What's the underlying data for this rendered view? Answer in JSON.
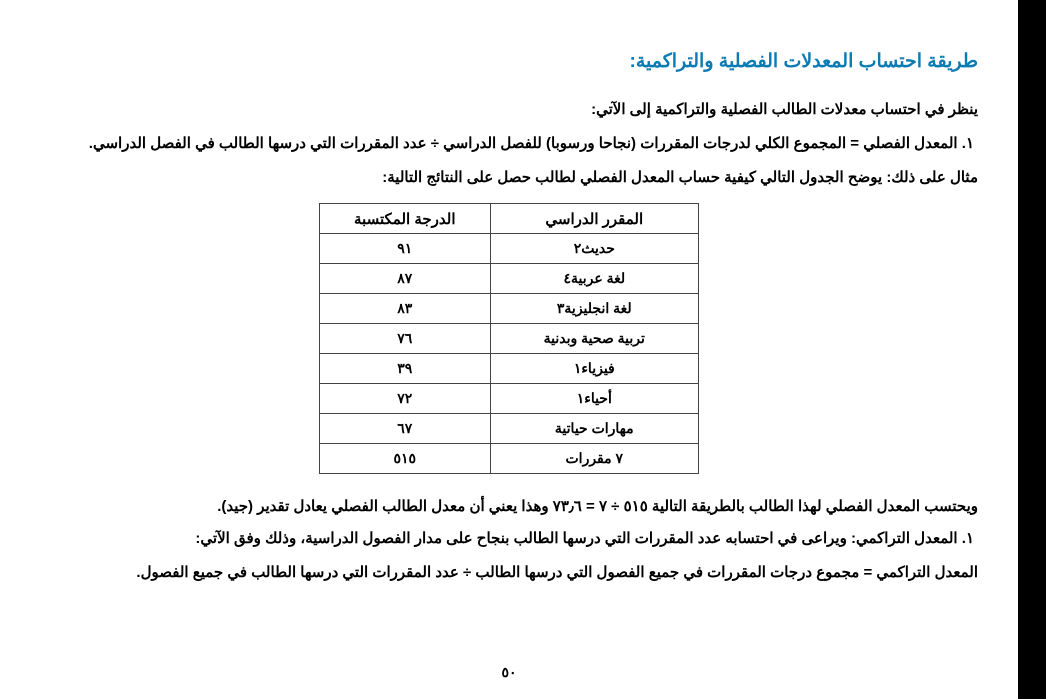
{
  "title": "طريقة احتساب المعدلات الفصلية والتراكمية:",
  "intro": "ينظر في احتساب معدلات الطالب الفصلية والتراكمية إلى الآتي:",
  "item1": "١.  المعدل الفصلي = المجموع الكلي لدرجات المقررات (نجاحا ورسوبا) للفصل الدراسي ÷ عدد المقررات التي درسها الطالب في الفصل الدراسي.",
  "example_intro": "مثال على ذلك: يوضح الجدول التالي كيفية حساب المعدل الفصلي لطالب حصل على النتائج التالية:",
  "table": {
    "header_course": "المقرر الدراسي",
    "header_grade": "الدرجة المكتسبة",
    "rows": [
      {
        "course": "حديث٢",
        "grade": "٩١"
      },
      {
        "course": "لغة عربية٤",
        "grade": "٨٧"
      },
      {
        "course": "لغة انجليزية٣",
        "grade": "٨٣"
      },
      {
        "course": "تربية صحية وبدنية",
        "grade": "٧٦"
      },
      {
        "course": "فيزياء١",
        "grade": "٣٩"
      },
      {
        "course": "أحياء١",
        "grade": "٧٢"
      },
      {
        "course": "مهارات حياتية",
        "grade": "٦٧"
      }
    ],
    "footer_course": "٧ مقررات",
    "footer_grade": "٥١٥"
  },
  "calc1": "ويحتسب المعدل الفصلي لهذا الطالب بالطريقة التالية ٥١٥ ÷ ٧ = ٧٣٫٦ وهذا يعني أن معدل الطالب الفصلي يعادل تقدير (جيد).",
  "item2": "١.  المعدل التراكمي: ويراعى في احتسابه عدد المقررات التي درسها الطالب بنجاح على مدار الفصول الدراسية، وذلك وفق الآتي:",
  "cumulative_formula": "المعدل التراكمي = مجموع درجات المقررات في جميع الفصول التي درسها الطالب ÷ عدد المقررات التي درسها الطالب في جميع الفصول.",
  "page_number": "٥٠",
  "colors": {
    "title": "#0b7bb3",
    "text": "#000000",
    "border": "#444444",
    "background": "#ffffff"
  }
}
